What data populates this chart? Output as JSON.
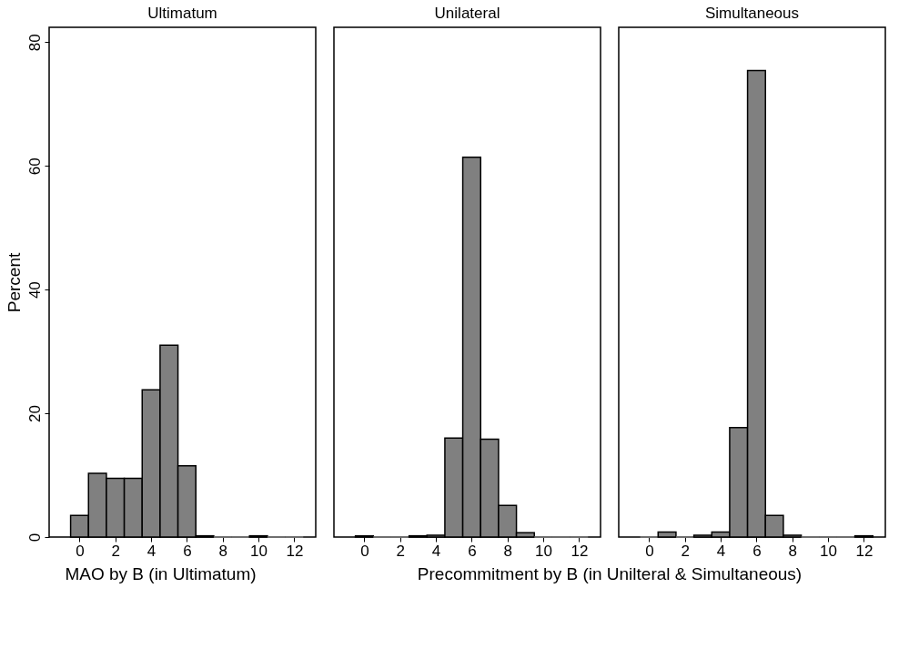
{
  "chart_data": [
    {
      "type": "histogram",
      "title": "Ultimatum",
      "xlabel": "MAO by B (in Ultimatum)",
      "ylabel": "Percent",
      "bins": [
        -0.5,
        0.5,
        1.5,
        2.5,
        3.5,
        4.5,
        5.5,
        6.5,
        7.5,
        8.5,
        9.5,
        10.5,
        11.5,
        12.5
      ],
      "values": [
        3.5,
        10.3,
        9.5,
        9.5,
        23.8,
        31.0,
        11.5,
        0.2,
        0,
        0,
        0.2,
        0,
        0
      ],
      "color": "#808080",
      "xlim": [
        -1.7,
        13.2
      ],
      "xticks": [
        0,
        2,
        4,
        6,
        8,
        10,
        12
      ],
      "ylim": [
        0,
        82.4
      ],
      "yticks": [
        0,
        20,
        40,
        60,
        80
      ],
      "grid": false
    },
    {
      "type": "histogram",
      "title": "Unilateral",
      "xlabel": "Precommitment by B (in Unilteral & Simultaneous)",
      "bins": [
        -0.5,
        0.5,
        1.5,
        2.5,
        3.5,
        4.5,
        5.5,
        6.5,
        7.5,
        8.5,
        9.5,
        10.5,
        11.5,
        12.5
      ],
      "values": [
        0.2,
        0,
        0,
        0.2,
        0.3,
        16.0,
        61.4,
        15.8,
        5.1,
        0.7,
        0,
        0,
        0
      ],
      "color": "#808080",
      "xlim": [
        -1.7,
        13.2
      ],
      "xticks": [
        0,
        2,
        4,
        6,
        8,
        10,
        12
      ],
      "ylim": [
        0,
        82.4
      ],
      "yticks": [
        0,
        20,
        40,
        60,
        80
      ],
      "grid": false,
      "tick_labels": "x"
    },
    {
      "type": "histogram",
      "title": "Simultaneous",
      "bins": [
        -0.5,
        0.5,
        1.5,
        2.5,
        3.5,
        4.5,
        5.5,
        6.5,
        7.5,
        8.5,
        9.5,
        10.5,
        11.5,
        12.5
      ],
      "values": [
        0,
        0.8,
        0,
        0.3,
        0.8,
        17.7,
        75.4,
        3.5,
        0.3,
        0,
        0,
        0,
        0.2
      ],
      "color": "#808080",
      "xlim": [
        -1.7,
        13.2
      ],
      "xticks": [
        0,
        2,
        4,
        6,
        8,
        10,
        12
      ],
      "ylim": [
        0,
        82.4
      ],
      "yticks": [
        0,
        20,
        40,
        60,
        80
      ],
      "grid": false,
      "tick_labels": "x"
    }
  ]
}
